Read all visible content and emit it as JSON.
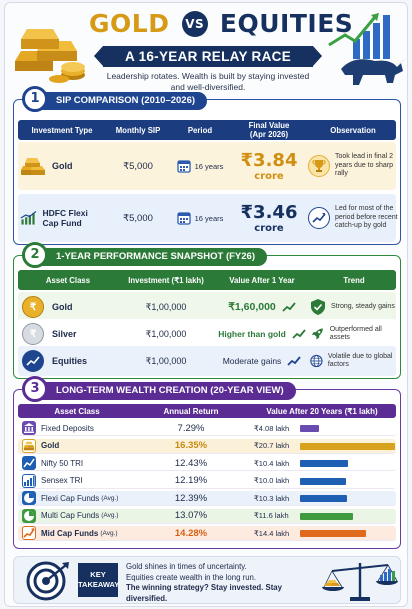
{
  "header": {
    "title_gold": "GOLD",
    "title_vs": "VS",
    "title_equities": "EQUITIES",
    "banner": "A 16-YEAR RELAY RACE",
    "subtitle_1": "Leadership rotates. Wealth is built by staying invested",
    "subtitle_2": "and well-diversified."
  },
  "colors": {
    "navy": "#16305f",
    "gold": "#d79a16",
    "green": "#2c7a38",
    "purple": "#5b2d94",
    "blue": "#1f4591"
  },
  "sip": {
    "number": "1",
    "heading": "SIP COMPARISON (2010–2026)",
    "columns": [
      "Investment Type",
      "Monthly SIP",
      "Period",
      "Final Value\n(Apr 2026)",
      "Observation"
    ],
    "rows": [
      {
        "type": "Gold",
        "sip": "₹5,000",
        "period": "16 years",
        "value": "₹3.84",
        "unit": "crore",
        "obs": "Took lead in final 2 years due to sharp rally",
        "icon": "gold-bars-icon",
        "obs_icon": "trophy-icon"
      },
      {
        "type": "HDFC Flexi Cap Fund",
        "sip": "₹5,000",
        "period": "16 years",
        "value": "₹3.46",
        "unit": "crore",
        "obs": "Led for most of the period before recent catch-up by gold",
        "icon": "growth-chart-icon",
        "obs_icon": "trend-up-icon"
      }
    ]
  },
  "perf": {
    "number": "2",
    "heading": "1-YEAR PERFORMANCE SNAPSHOT (FY26)",
    "columns": [
      "Asset Class",
      "Investment (₹1 lakh)",
      "Value After 1 Year",
      "Trend"
    ],
    "rows": [
      {
        "asset": "Gold",
        "investment": "₹1,00,000",
        "value": "₹1,60,000",
        "trend": "Strong, steady gains",
        "icon": "gold-coin-icon",
        "trend_icon": "shield-check-icon"
      },
      {
        "asset": "Silver",
        "investment": "₹1,00,000",
        "value": "Higher than gold",
        "trend": "Outperformed all assets",
        "icon": "silver-coin-icon",
        "trend_icon": "rocket-icon"
      },
      {
        "asset": "Equities",
        "investment": "₹1,00,000",
        "value": "Moderate gains",
        "trend": "Volatile due to global factors",
        "icon": "equity-chart-icon",
        "trend_icon": "globe-icon"
      }
    ]
  },
  "wealth": {
    "number": "3",
    "heading": "LONG-TERM WEALTH CREATION (20-YEAR VIEW)",
    "columns": [
      "Asset Class",
      "Annual Return",
      "Value After 20 Years (₹1 lakh)"
    ],
    "rows": [
      {
        "asset": "Fixed Deposits",
        "ret": "7.29%",
        "value": "₹4.08 lakh",
        "amount": 4.08,
        "color": "#6a4bb0",
        "bg": "#ffffff",
        "icon": "bank-icon"
      },
      {
        "asset": "Gold",
        "ret": "16.35%",
        "value": "₹20.7 lakh",
        "amount": 20.7,
        "color": "#d9a21d",
        "bg": "#fbf1d8",
        "icon": "gold-bars-icon"
      },
      {
        "asset": "Nifty 50 TRI",
        "ret": "12.43%",
        "value": "₹10.4 lakh",
        "amount": 10.4,
        "color": "#1e5fb3",
        "bg": "#ffffff",
        "icon": "line-chart-icon"
      },
      {
        "asset": "Sensex TRI",
        "ret": "12.19%",
        "value": "₹10.0 lakh",
        "amount": 10.0,
        "color": "#1e5fb3",
        "bg": "#ffffff",
        "icon": "bar-chart-icon"
      },
      {
        "asset": "Flexi Cap Funds",
        "suffix": "(Avg.)",
        "ret": "12.39%",
        "value": "₹10.3 lakh",
        "amount": 10.3,
        "color": "#1e5fb3",
        "bg": "#eaf1fb",
        "icon": "pie-chart-icon"
      },
      {
        "asset": "Multi Cap Funds",
        "suffix": "(Avg.)",
        "ret": "13.07%",
        "value": "₹11.6 lakh",
        "amount": 11.6,
        "color": "#3f9a3f",
        "bg": "#eaf5e6",
        "icon": "pie-chart-icon"
      },
      {
        "asset": "Mid Cap Funds",
        "suffix": "(Avg.)",
        "ret": "14.28%",
        "value": "₹14.4 lakh",
        "amount": 14.4,
        "color": "#e06a1b",
        "bg": "#fdebe0",
        "icon": "growth-arrow-icon"
      }
    ]
  },
  "takeaway": {
    "label_1": "KEY",
    "label_2": "TAKEAWAY",
    "line_1": "Gold shines in times of uncertainty.",
    "line_2": "Equities create wealth in the long run.",
    "line_3": "The winning strategy? Stay invested. Stay diversified."
  }
}
